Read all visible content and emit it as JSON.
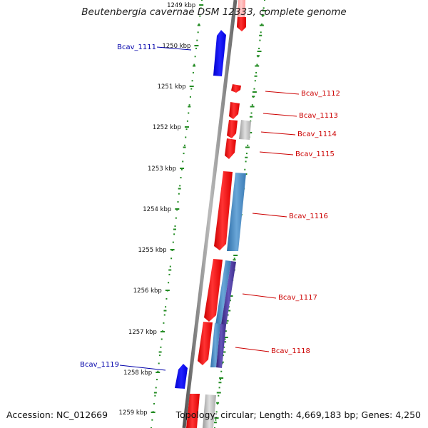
{
  "title": "Beutenbergia cavernae DSM 12333, complete genome",
  "footer": {
    "accession": "Accession: NC_012669",
    "summary": "Topology: circular; Length: 4,669,183 bp; Genes: 4,250"
  },
  "colors": {
    "forward_gene": "#ff0000",
    "reverse_gene": "#0000ff",
    "rna_gene": "#4682b4",
    "other_gene": "#bbbbbb",
    "tick": "#228b22",
    "backbone": "#808080"
  },
  "scale_ticks": [
    "1249 kbp",
    "1250 kbp",
    "1251 kbp",
    "1252 kbp",
    "1253 kbp",
    "1254 kbp",
    "1255 kbp",
    "1256 kbp",
    "1257 kbp",
    "1258 kbp",
    "1259 kbp"
  ],
  "gene_labels": [
    {
      "name": "Bcav_1111",
      "side": "left",
      "color": "#0000aa"
    },
    {
      "name": "Bcav_1112",
      "side": "right",
      "color": "#cc0000"
    },
    {
      "name": "Bcav_1113",
      "side": "right",
      "color": "#cc0000"
    },
    {
      "name": "Bcav_1114",
      "side": "right",
      "color": "#cc0000"
    },
    {
      "name": "Bcav_1115",
      "side": "right",
      "color": "#cc0000"
    },
    {
      "name": "Bcav_1116",
      "side": "right",
      "color": "#cc0000"
    },
    {
      "name": "Bcav_1117",
      "side": "right",
      "color": "#cc0000"
    },
    {
      "name": "Bcav_1118",
      "side": "right",
      "color": "#cc0000"
    },
    {
      "name": "Bcav_1119",
      "side": "left",
      "color": "#0000aa"
    }
  ]
}
